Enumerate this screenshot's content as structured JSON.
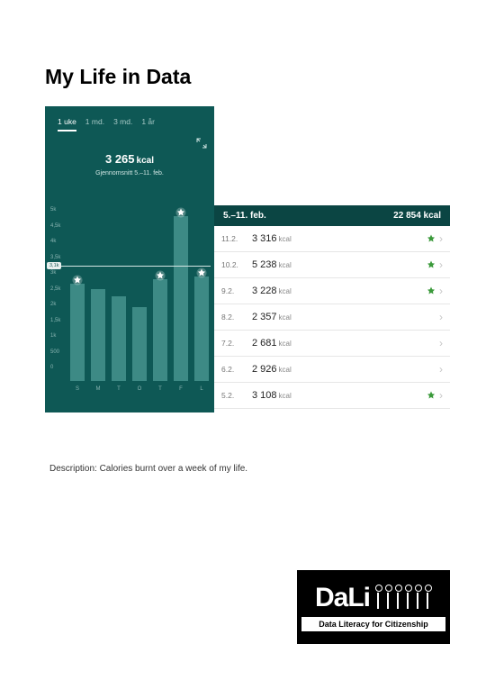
{
  "title": "My Life in Data",
  "description": "Description: Calories burnt over a week of my life.",
  "chart": {
    "tabs": [
      "1 uke",
      "1 md.",
      "3 md.",
      "1 år"
    ],
    "active_tab": 0,
    "headline_value": "3 265",
    "headline_unit": "kcal",
    "headline_sub": "Gjennomsnitt 5.–11. feb.",
    "type": "bar",
    "background_color": "#0e5855",
    "bar_color": "#3d8a85",
    "text_color": "#ffffff",
    "muted_text_color": "#8ab5b2",
    "avg_line_color": "#d4e6e4",
    "avg_value": 3140,
    "avg_label": "3,1k",
    "ylim": [
      0,
      5500
    ],
    "ytick_labels": [
      "0",
      "500",
      "1k",
      "1,5k",
      "2k",
      "2,5k",
      "3k",
      "3,5k",
      "4k",
      "4,5k",
      "5k"
    ],
    "ytick_values": [
      0,
      500,
      1000,
      1500,
      2000,
      2500,
      3000,
      3500,
      4000,
      4500,
      5000
    ],
    "bars": [
      {
        "label": "S",
        "value": 3108,
        "star": true
      },
      {
        "label": "M",
        "value": 2926,
        "star": false
      },
      {
        "label": "T",
        "value": 2681,
        "star": false
      },
      {
        "label": "O",
        "value": 2357,
        "star": false
      },
      {
        "label": "T",
        "value": 3228,
        "star": true
      },
      {
        "label": "F",
        "value": 5238,
        "star": true
      },
      {
        "label": "L",
        "value": 3316,
        "star": true
      }
    ]
  },
  "list": {
    "header_range": "5.–11. feb.",
    "header_total": "22 854 kcal",
    "background_header": "#0b4543",
    "star_color": "#3b9a3b",
    "rows": [
      {
        "date": "11.2.",
        "value": "3 316",
        "unit": "kcal",
        "star": true
      },
      {
        "date": "10.2.",
        "value": "5 238",
        "unit": "kcal",
        "star": true
      },
      {
        "date": "9.2.",
        "value": "3 228",
        "unit": "kcal",
        "star": true
      },
      {
        "date": "8.2.",
        "value": "2 357",
        "unit": "kcal",
        "star": false
      },
      {
        "date": "7.2.",
        "value": "2 681",
        "unit": "kcal",
        "star": false
      },
      {
        "date": "6.2.",
        "value": "2 926",
        "unit": "kcal",
        "star": false
      },
      {
        "date": "5.2.",
        "value": "3 108",
        "unit": "kcal",
        "star": true
      }
    ]
  },
  "logo": {
    "wordmark": "DaLi",
    "tagline": "Data Literacy for Citizenship",
    "figure_count": 6
  }
}
